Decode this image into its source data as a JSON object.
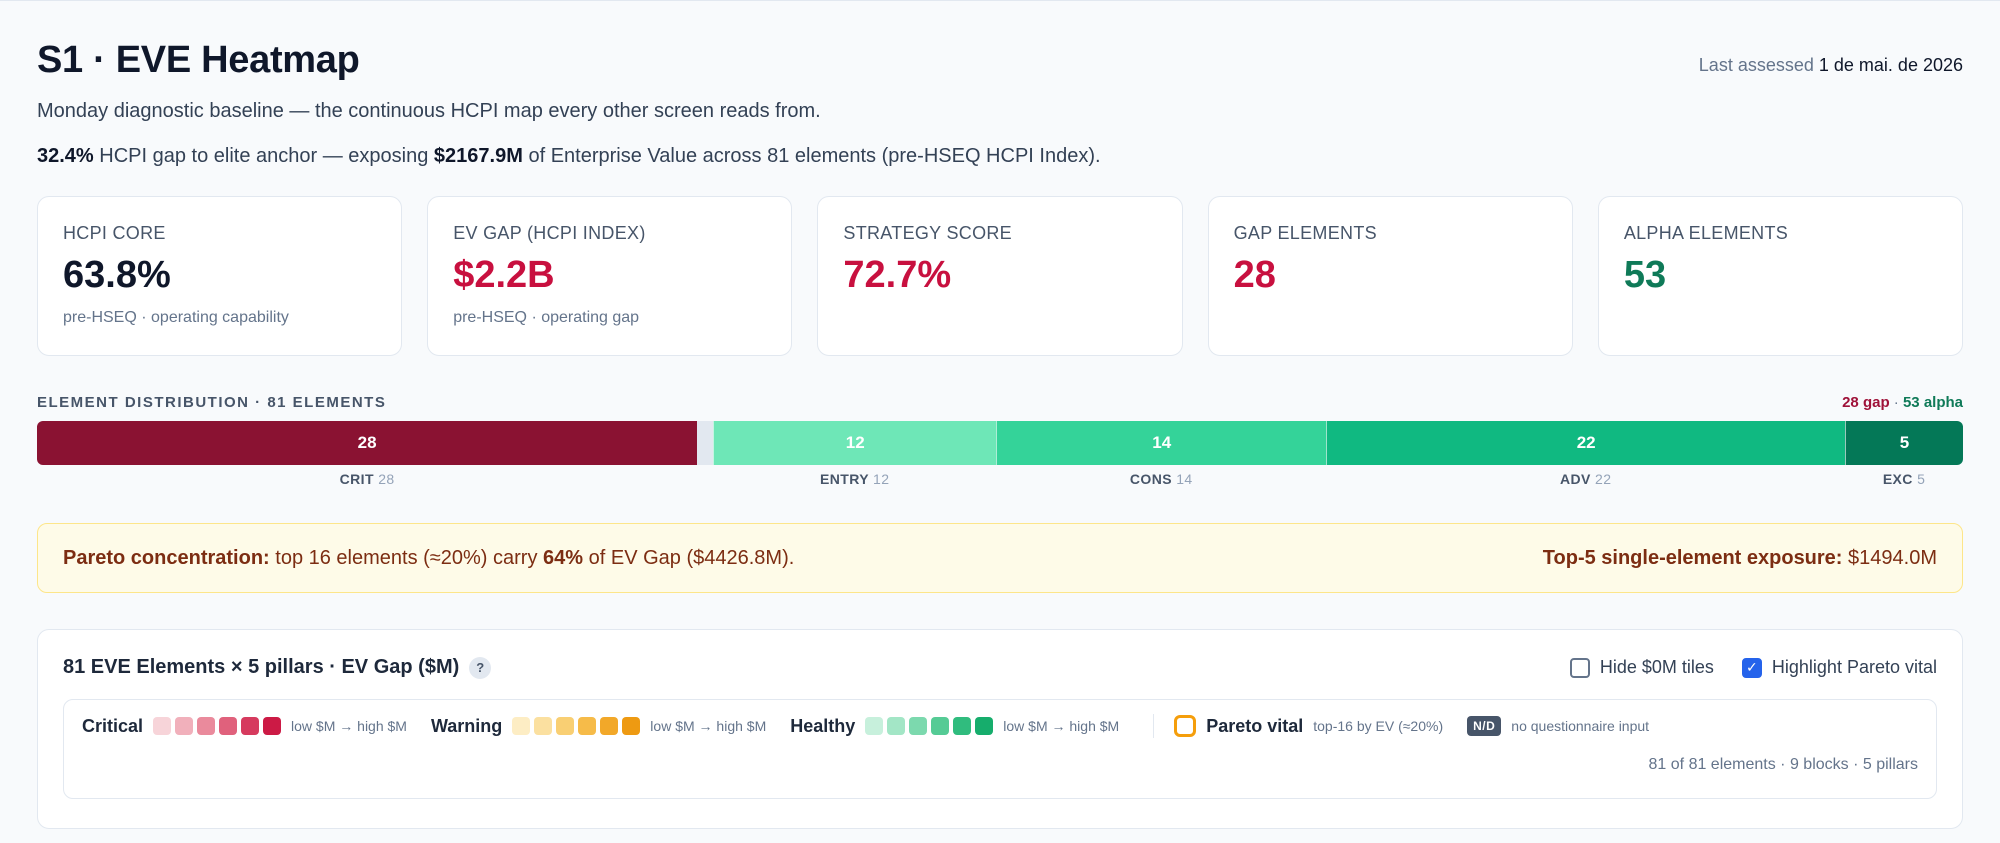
{
  "header": {
    "title": "S1 · EVE Heatmap",
    "assessed_label": "Last assessed",
    "assessed_date": "1 de mai. de 2026",
    "subtitle": "Monday diagnostic baseline — the continuous HCPI map every other screen reads from.",
    "headline_pct": "32.4%",
    "headline_mid": "HCPI gap to elite anchor — exposing",
    "headline_value": "$2167.9M",
    "headline_end": "of Enterprise Value across 81 elements (pre-HSEQ HCPI Index)."
  },
  "kpis": [
    {
      "label": "HCPI CORE",
      "value": "63.8%",
      "sub": "pre-HSEQ · operating capability",
      "color": "#0f172a"
    },
    {
      "label": "EV GAP (HCPI INDEX)",
      "value": "$2.2B",
      "sub": "pre-HSEQ · operating gap",
      "color": "#c8103f"
    },
    {
      "label": "STRATEGY SCORE",
      "value": "72.7%",
      "sub": "",
      "color": "#c8103f"
    },
    {
      "label": "GAP ELEMENTS",
      "value": "28",
      "sub": "",
      "color": "#c8103f"
    },
    {
      "label": "ALPHA ELEMENTS",
      "value": "53",
      "sub": "",
      "color": "#0f7a58"
    }
  ],
  "distribution": {
    "title": "ELEMENT DISTRIBUTION · 81 ELEMENTS",
    "gap_label": "28 gap",
    "separator": "·",
    "alpha_label": "53 alpha",
    "total": 81,
    "segments": [
      {
        "key": "CRIT",
        "count": 28,
        "color": "#8a1232"
      },
      {
        "key": "WARN",
        "count": 0,
        "color": "#e2e8f0"
      },
      {
        "key": "ENTRY",
        "count": 12,
        "color": "#6ee7b7"
      },
      {
        "key": "CONS",
        "count": 14,
        "color": "#34d399"
      },
      {
        "key": "ADV",
        "count": 22,
        "color": "#10b981"
      },
      {
        "key": "EXC",
        "count": 5,
        "color": "#047857"
      }
    ]
  },
  "pareto": {
    "label": "Pareto concentration:",
    "text1": "top 16 elements (≈20%) carry",
    "pct": "64%",
    "text2": "of EV Gap ($4426.8M).",
    "exposure_label": "Top-5 single-element exposure:",
    "exposure_value": "$1494.0M"
  },
  "heatmap": {
    "title": "81 EVE Elements × 5 pillars · EV Gap ($M)",
    "help": "?",
    "hide_zero_label": "Hide $0M tiles",
    "hide_zero_checked": false,
    "highlight_label": "Highlight Pareto vital",
    "highlight_checked": true,
    "legend": {
      "critical": {
        "label": "Critical",
        "range": "low $M → high $M",
        "colors": [
          "#f7d4d9",
          "#f1b0bb",
          "#ea8a9c",
          "#e0617c",
          "#d63a5e",
          "#cc1a45"
        ]
      },
      "warning": {
        "label": "Warning",
        "range": "low $M → high $M",
        "colors": [
          "#fdedc4",
          "#fbe0a0",
          "#f9cf73",
          "#f6bb49",
          "#f2a829",
          "#ee9a12"
        ]
      },
      "healthy": {
        "label": "Healthy",
        "range": "low $M → high $M",
        "colors": [
          "#c7f0dc",
          "#a3e6c6",
          "#7cd9ae",
          "#55cb95",
          "#30bc7e",
          "#16ad6c"
        ]
      },
      "pareto_label": "Pareto vital",
      "pareto_desc": "top-16 by EV (≈20%)",
      "nd_badge": "N/D",
      "nd_desc": "no questionnaire input"
    },
    "footer": "81 of 81 elements · 9 blocks · 5 pillars"
  }
}
